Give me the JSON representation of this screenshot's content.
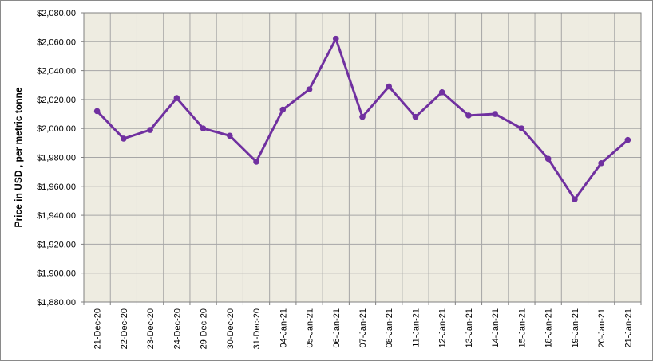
{
  "chart_data": {
    "type": "line",
    "title": "",
    "xlabel": "",
    "ylabel": "Price in USD , per metric tonne",
    "ylim": [
      1880,
      2080
    ],
    "ytick_step": 20,
    "y_tick_labels": [
      "$1,880.00",
      "$1,900.00",
      "$1,920.00",
      "$1,940.00",
      "$1,960.00",
      "$1,980.00",
      "$2,000.00",
      "$2,020.00",
      "$2,040.00",
      "$2,060.00",
      "$2,080.00"
    ],
    "grid": true,
    "legend": "none",
    "categories": [
      "21-Dec-20",
      "22-Dec-20",
      "23-Dec-20",
      "24-Dec-20",
      "29-Dec-20",
      "30-Dec-20",
      "31-Dec-20",
      "04-Jan-21",
      "05-Jan-21",
      "06-Jan-21",
      "07-Jan-21",
      "08-Jan-21",
      "11-Jan-21",
      "12-Jan-21",
      "13-Jan-21",
      "14-Jan-21",
      "15-Jan-21",
      "18-Jan-21",
      "19-Jan-21",
      "20-Jan-21",
      "21-Jan-21"
    ],
    "series": [
      {
        "values": [
          2012,
          1993,
          1999,
          2021,
          2000,
          1995,
          1977,
          2013,
          2027,
          2062,
          2008,
          2029,
          2008,
          2025,
          2009,
          2010,
          2000,
          1979,
          1951,
          1976,
          1992
        ]
      }
    ],
    "colors": {
      "line": "#7030a0",
      "plot_background": "#eeece1",
      "grid": "#a6a6a6"
    }
  }
}
